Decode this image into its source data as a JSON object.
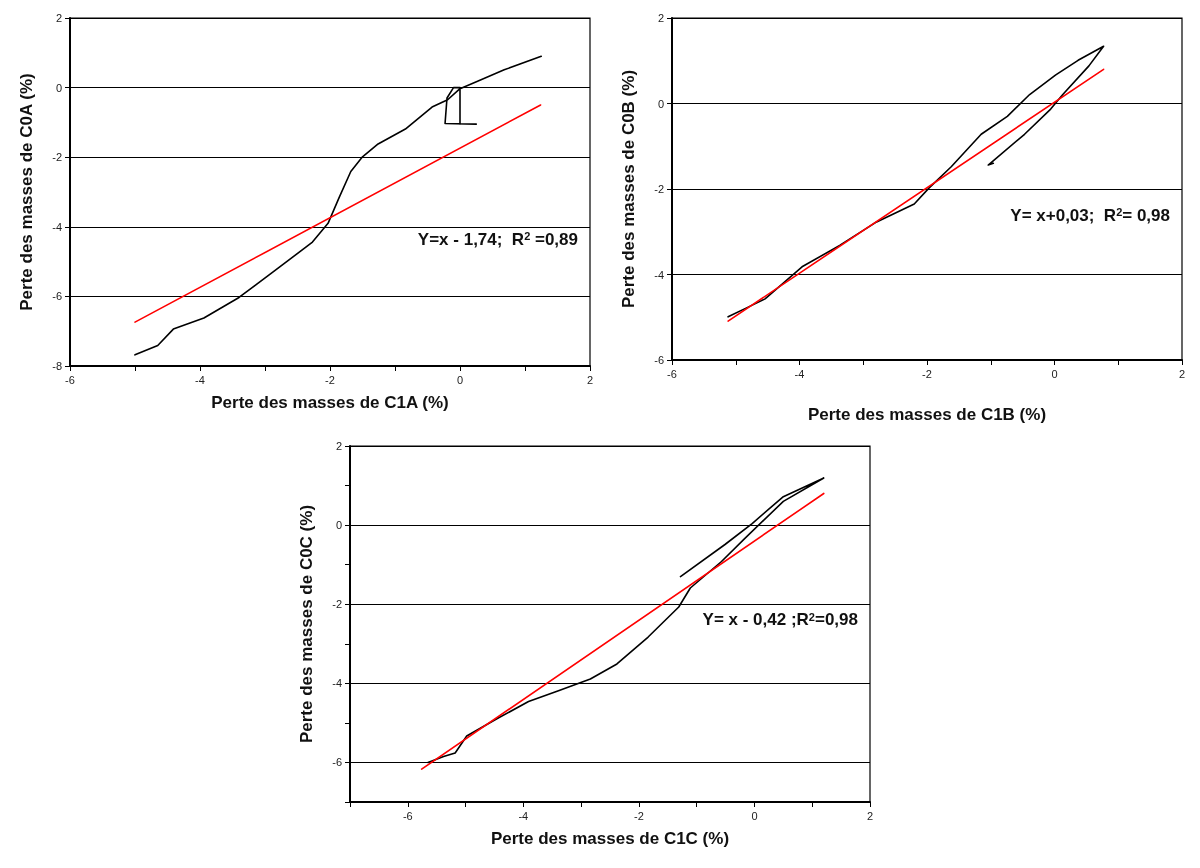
{
  "chart_data": [
    {
      "type": "line",
      "xlabel": "Perte des masses de C1A (%)",
      "ylabel": "Perte des masses de C0A (%)",
      "xlim": [
        -6,
        2
      ],
      "xticks": [
        -6,
        {
          "value": -5,
          "label": null
        },
        -4,
        {
          "value": -3,
          "label": null
        },
        -2,
        {
          "value": -1,
          "label": null
        },
        0,
        {
          "value": 1,
          "label": null
        },
        2
      ],
      "ylim": [
        -8,
        2
      ],
      "yticks": [
        -8,
        -6,
        -4,
        -2,
        0,
        2
      ],
      "grid": "y",
      "marker": "none",
      "line_style": "solid",
      "annotations": [
        "Y=x - 1,74;  R$^{2}$ =0,89"
      ],
      "series": [
        {
          "color": "#000000",
          "x": [
            -5.0,
            -4.65,
            -4.41,
            -3.94,
            -3.4,
            -2.87,
            -2.27,
            -2.03,
            -1.86,
            -1.68,
            -1.5,
            -1.26,
            -0.84,
            -0.43,
            -0.19,
            0,
            0.27,
            0.68,
            1.25,
            null,
            0.25,
            -0.23,
            -0.2,
            -0.1,
            0,
            0
          ],
          "values": [
            -7.68,
            -7.41,
            -6.94,
            -6.62,
            -6.03,
            -5.29,
            -4.44,
            -3.9,
            -3.16,
            -2.41,
            -1.99,
            -1.62,
            -1.19,
            -0.56,
            -0.35,
            -0.03,
            0.18,
            0.51,
            0.9,
            null,
            -1.05,
            -1.03,
            -0.3,
            0,
            0,
            -1.05
          ]
        },
        {
          "color": "#ff0000",
          "x": [
            -5.0,
            1.24
          ],
          "values": [
            -6.74,
            -0.5
          ]
        }
      ]
    },
    {
      "type": "line",
      "xlabel": "Perte des masses de C1B (%)",
      "ylabel": "Perte des masses de C0B (%)",
      "xlim": [
        -6,
        2
      ],
      "xticks": [
        -6,
        {
          "value": -5,
          "label": null
        },
        -4,
        {
          "value": -3,
          "label": null
        },
        -2,
        {
          "value": -1,
          "label": null
        },
        0,
        {
          "value": 1,
          "label": null
        },
        2
      ],
      "ylim": [
        -6,
        2
      ],
      "yticks": [
        -6,
        -4,
        -2,
        0,
        2
      ],
      "grid": "y",
      "marker": "none",
      "line_style": "solid",
      "annotations": [
        "Y= x+0,03;  R$^{2}$= 0,98"
      ],
      "series": [
        {
          "color": "#000000",
          "x": [
            -5.12,
            -4.83,
            -4.54,
            -3.96,
            -3.37,
            -2.79,
            -2.2,
            -1.97,
            -1.62,
            -1.15,
            -0.74,
            -0.39,
            0.02,
            0.37,
            0.77,
            0.54,
            0.13,
            -0.06,
            -0.47,
            -1.04,
            -0.96
          ],
          "values": [
            -4.99,
            -4.78,
            -4.57,
            -3.82,
            -3.32,
            -2.77,
            -2.35,
            -1.98,
            -1.48,
            -0.72,
            -0.3,
            0.21,
            0.67,
            1.01,
            1.34,
            0.88,
            0.21,
            -0.13,
            -0.72,
            -1.44,
            -1.4
          ]
        },
        {
          "color": "#ff0000",
          "x": [
            -5.12,
            0.77
          ],
          "values": [
            -5.09,
            0.8
          ]
        }
      ]
    },
    {
      "type": "line",
      "xlabel": "Perte des masses de C1C (%)",
      "ylabel": "Perte des masses de C0C (%)",
      "xlim": [
        -7,
        2
      ],
      "xticks": [
        {
          "value": -7,
          "label": null
        },
        -6,
        {
          "value": -5,
          "label": null
        },
        -4,
        {
          "value": -3,
          "label": null
        },
        -2,
        {
          "value": -1,
          "label": null
        },
        0,
        {
          "value": 1,
          "label": null
        },
        2
      ],
      "ylim": [
        -7,
        2
      ],
      "yticks": [
        {
          "value": -7,
          "label": null
        },
        -6,
        {
          "value": -5,
          "label": null
        },
        -4,
        {
          "value": -3,
          "label": null
        },
        -2,
        {
          "value": -1,
          "label": null
        },
        0,
        {
          "value": 1,
          "label": null
        },
        2
      ],
      "grid": "y",
      "marker": "none",
      "line_style": "solid",
      "annotations": [
        "Y= x - 0,42 ;R$^{2}$=0,98"
      ],
      "series": [
        {
          "color": "#000000",
          "x": [
            -1.28,
            -0.51,
            -0.04,
            0.49,
            1.2,
            0.5,
            -0.17,
            -0.57,
            -1.11,
            -1.31,
            -1.84,
            -2.38,
            -2.84,
            -3.38,
            -3.91,
            -4.45,
            -4.98,
            -5.18,
            -5.38,
            -5.65
          ],
          "values": [
            -1.3,
            -0.49,
            0.04,
            0.71,
            1.19,
            0.6,
            -0.34,
            -0.92,
            -1.59,
            -2.07,
            -2.83,
            -3.51,
            -3.89,
            -4.18,
            -4.46,
            -4.89,
            -5.33,
            -5.76,
            -5.85,
            -6.0
          ]
        },
        {
          "color": "#ff0000",
          "x": [
            -5.76,
            1.2
          ],
          "values": [
            -6.17,
            0.8
          ]
        }
      ]
    }
  ]
}
